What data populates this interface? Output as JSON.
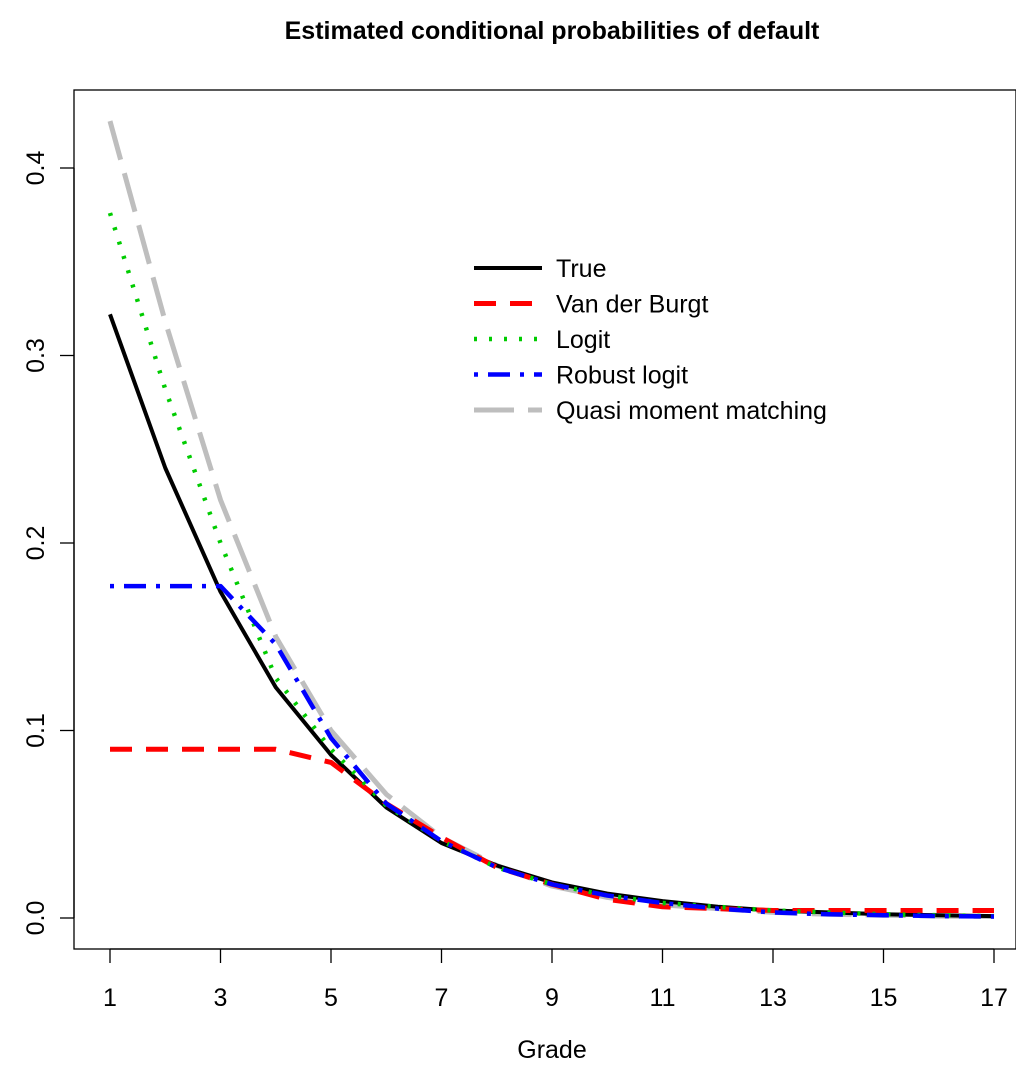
{
  "chart_data": {
    "type": "line",
    "title": "Estimated conditional probabilities of default",
    "xlabel": "Grade",
    "ylabel": "",
    "xlim": [
      1,
      17
    ],
    "ylim": [
      0,
      0.425
    ],
    "x_ticks": [
      "1",
      "3",
      "5",
      "7",
      "9",
      "11",
      "13",
      "15",
      "17"
    ],
    "y_ticks": [
      "0.0",
      "0.1",
      "0.2",
      "0.3",
      "0.4"
    ],
    "grid": false,
    "legend_position": "top-right",
    "x": [
      1,
      2,
      3,
      4,
      5,
      6,
      7,
      8,
      9,
      10,
      11,
      12,
      13,
      14,
      15,
      16,
      17
    ],
    "series": [
      {
        "name": "True",
        "color": "#000000",
        "line_style": "solid",
        "values": [
          0.322,
          0.24,
          0.174,
          0.123,
          0.087,
          0.059,
          0.04,
          0.028,
          0.019,
          0.013,
          0.009,
          0.006,
          0.004,
          0.003,
          0.002,
          0.0015,
          0.001
        ]
      },
      {
        "name": "Van der Burgt",
        "color": "#ff0000",
        "line_style": "dashed",
        "values": [
          0.09,
          0.09,
          0.09,
          0.09,
          0.083,
          0.061,
          0.043,
          0.027,
          0.018,
          0.01,
          0.006,
          0.005,
          0.004,
          0.004,
          0.004,
          0.004,
          0.004
        ]
      },
      {
        "name": "Logit",
        "color": "#00cc00",
        "line_style": "dotted",
        "values": [
          0.376,
          0.282,
          0.2,
          0.128,
          0.09,
          0.06,
          0.041,
          0.027,
          0.018,
          0.012,
          0.008,
          0.006,
          0.004,
          0.003,
          0.002,
          0.0015,
          0.001
        ]
      },
      {
        "name": "Robust logit",
        "color": "#0000ff",
        "line_style": "dotdash",
        "values": [
          0.177,
          0.177,
          0.177,
          0.146,
          0.096,
          0.061,
          0.041,
          0.027,
          0.018,
          0.012,
          0.008,
          0.005,
          0.003,
          0.002,
          0.0015,
          0.001,
          0.0008
        ]
      },
      {
        "name": "Quasi moment matching",
        "color": "#bebebe",
        "line_style": "longdash",
        "values": [
          0.425,
          0.318,
          0.223,
          0.15,
          0.1,
          0.066,
          0.043,
          0.028,
          0.017,
          0.011,
          0.007,
          0.005,
          0.003,
          0.002,
          0.0015,
          0.001,
          0.0008
        ]
      }
    ]
  }
}
